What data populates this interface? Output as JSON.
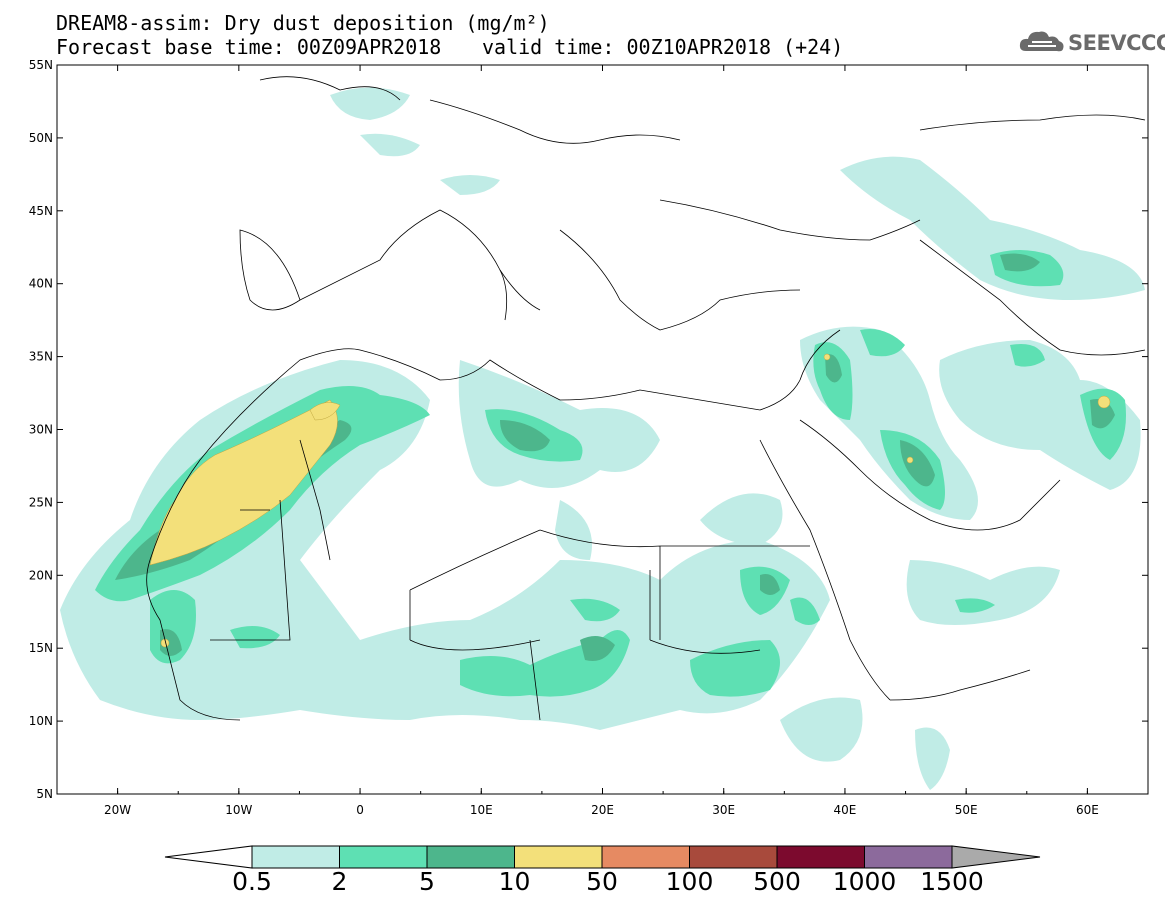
{
  "title": {
    "line1": "DREAM8-assim: Dry dust deposition (mg/m²)",
    "base_time": "Forecast base time: 00Z09APR2018",
    "valid_time": "valid time: 00Z10APR2018 (+24)"
  },
  "logo": {
    "text": "SEEVCCC",
    "icon": "cloud-icon"
  },
  "map": {
    "lon_range": [
      -25,
      65
    ],
    "lat_range": [
      5,
      55
    ],
    "lat_labels": [
      "55N",
      "50N",
      "45N",
      "40N",
      "35N",
      "30N",
      "25N",
      "20N",
      "15N",
      "10N",
      "5N"
    ],
    "lon_labels": [
      "20W",
      "10W",
      "0",
      "10E",
      "20E",
      "30E",
      "40E",
      "50E",
      "60E"
    ]
  },
  "colorbar": {
    "levels": [
      "0.5",
      "2",
      "5",
      "10",
      "50",
      "100",
      "500",
      "1000",
      "1500"
    ],
    "colors": [
      "#c0ece6",
      "#5ee0b3",
      "#4db68c",
      "#f3e07a",
      "#e68a62",
      "#a84a3c",
      "#7c0a2e",
      "#8c6a9c"
    ],
    "under_color": "#ffffff",
    "over_color": "#aaaaaa"
  }
}
